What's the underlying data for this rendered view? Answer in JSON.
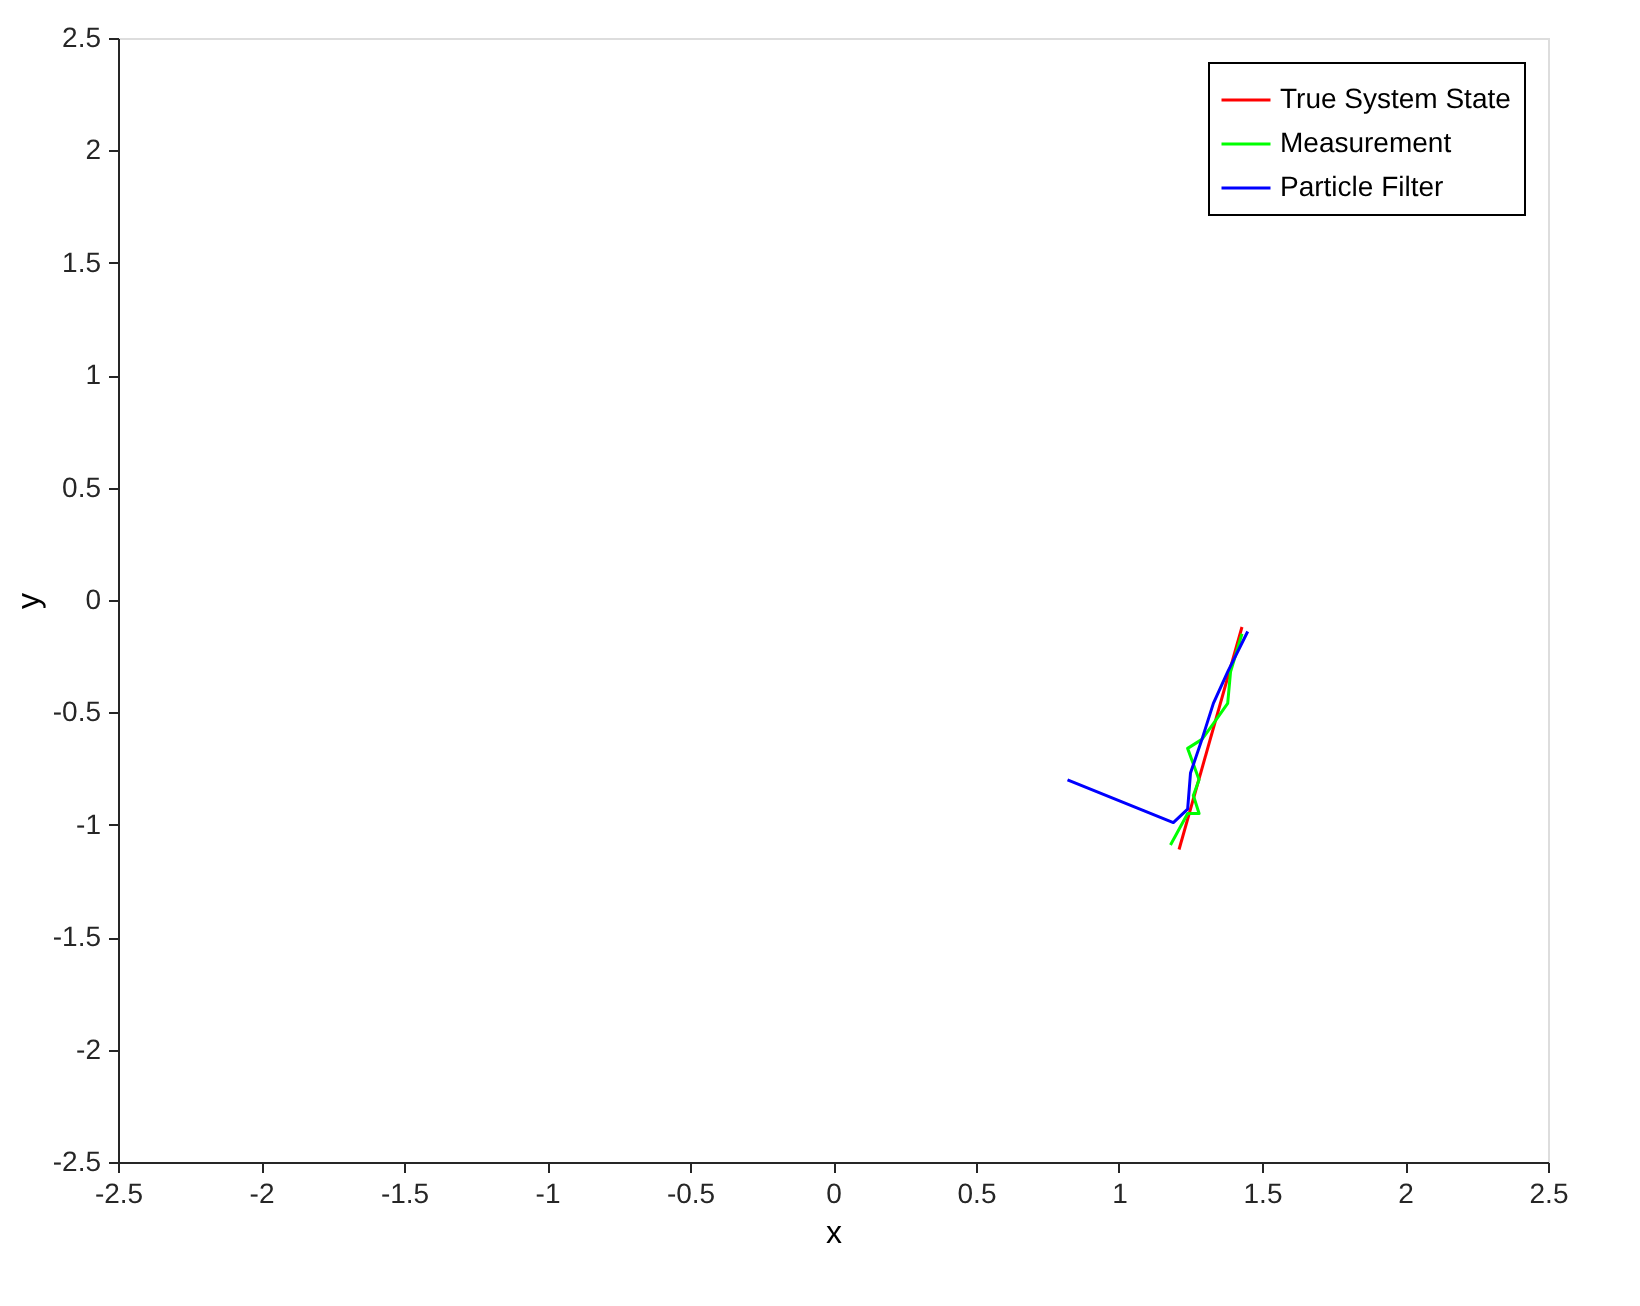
{
  "chart_data": {
    "type": "line",
    "xlabel": "x",
    "ylabel": "y",
    "xlim": [
      -2.5,
      2.5
    ],
    "ylim": [
      -2.5,
      2.5
    ],
    "xticks": [
      -2.5,
      -2,
      -1.5,
      -1,
      -0.5,
      0,
      0.5,
      1,
      1.5,
      2,
      2.5
    ],
    "yticks": [
      -2.5,
      -2,
      -1.5,
      -1,
      -0.5,
      0,
      0.5,
      1,
      1.5,
      2,
      2.5
    ],
    "grid": false,
    "legend": "top right",
    "marker": "none",
    "line_style": "solid",
    "series": [
      {
        "name": "True System State",
        "color": "#ff0000",
        "x": [
          1.43,
          1.21
        ],
        "values": [
          -0.12,
          -1.11
        ]
      },
      {
        "name": "Measurement",
        "color": "#00ff00",
        "x": [
          1.18,
          1.24,
          1.28,
          1.26,
          1.28,
          1.24,
          1.29,
          1.33,
          1.38,
          1.39,
          1.43
        ],
        "values": [
          -1.09,
          -0.95,
          -0.95,
          -0.87,
          -0.8,
          -0.66,
          -0.62,
          -0.55,
          -0.46,
          -0.32,
          -0.15
        ]
      },
      {
        "name": "Particle Filter",
        "color": "#0000ff",
        "x": [
          0.82,
          1.19,
          1.24,
          1.25,
          1.29,
          1.33,
          1.38,
          1.45
        ],
        "values": [
          -0.8,
          -0.99,
          -0.93,
          -0.77,
          -0.62,
          -0.46,
          -0.32,
          -0.14
        ]
      }
    ]
  }
}
